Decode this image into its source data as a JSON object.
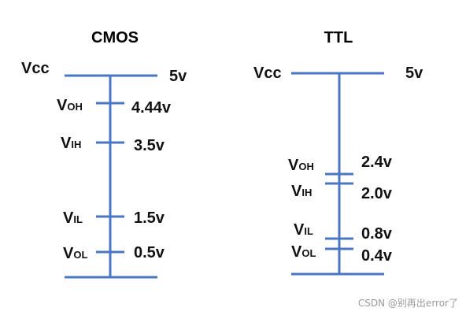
{
  "cmos": {
    "title": "CMOS",
    "vcc": "Vcc",
    "vcc_value": "5v",
    "levels": [
      {
        "main": "V",
        "sub": "OH",
        "value": "4.44v"
      },
      {
        "main": "V",
        "sub": "IH",
        "value": "3.5v"
      },
      {
        "main": "V",
        "sub": "IL",
        "value": "1.5v"
      },
      {
        "main": "V",
        "sub": "OL",
        "value": "0.5v"
      }
    ]
  },
  "ttl": {
    "title": "TTL",
    "vcc": "Vcc",
    "vcc_value": "5v",
    "levels": [
      {
        "main": "V",
        "sub": "OH",
        "value": "2.4v"
      },
      {
        "main": "V",
        "sub": "IH",
        "value": "2.0v"
      },
      {
        "main": "V",
        "sub": "IL",
        "value": "0.8v"
      },
      {
        "main": "V",
        "sub": "OL",
        "value": "0.4v"
      }
    ]
  },
  "colors": {
    "line": "#4a76c4",
    "text": "#111111",
    "watermark": "#9a9a9a"
  },
  "watermark": "CSDN @别再出error了"
}
